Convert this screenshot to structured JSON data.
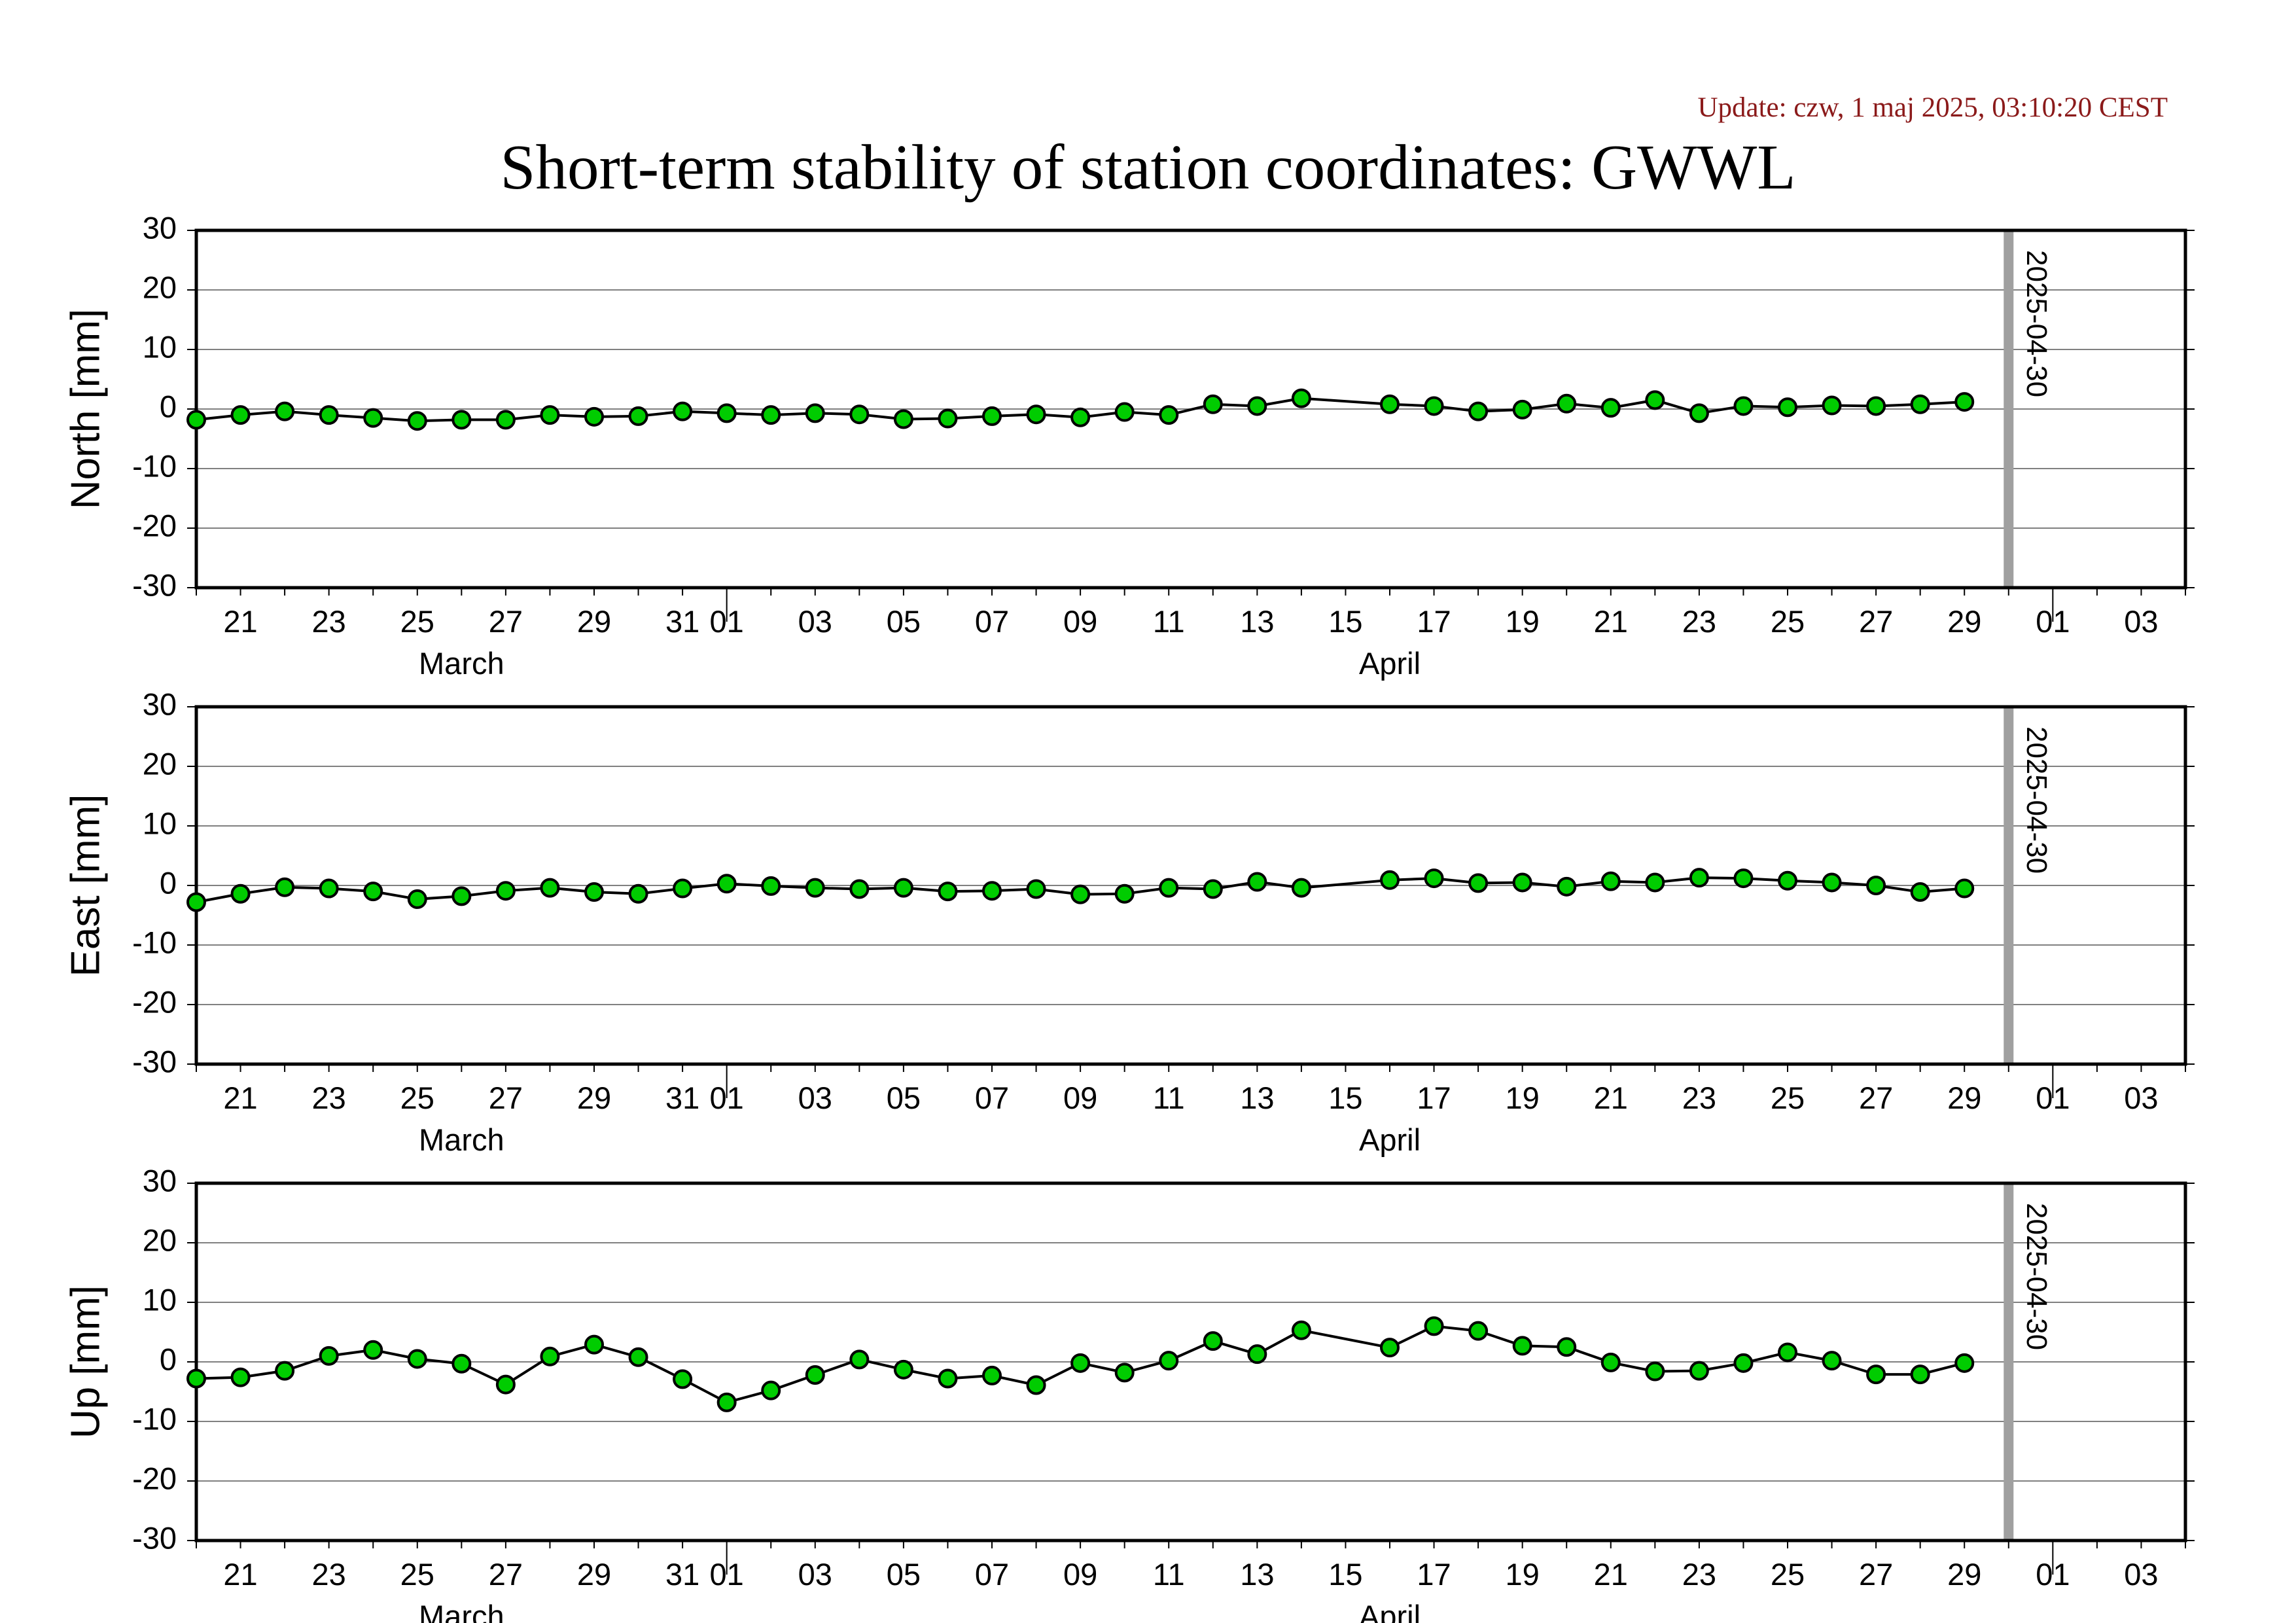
{
  "update_text": "Update: czw, 1 maj 2025, 03:10:20 CEST",
  "title": "Short-term stability of station coordinates: GWWL",
  "colors": {
    "marker_fill": "#00cc00",
    "marker_edge": "#000000",
    "line": "#000000",
    "grid": "#808080",
    "vline": "#a0a0a0",
    "update_text": "#8b1a1a"
  },
  "chart_data": [
    {
      "type": "line",
      "ylabel": "North [mm]",
      "ylim": [
        -30,
        30
      ],
      "yticks": [
        30,
        20,
        10,
        0,
        -10,
        -20,
        -30
      ],
      "xlim": [
        "2025-03-20",
        "2025-05-04"
      ],
      "x_day_ticks": [
        "21",
        "23",
        "25",
        "27",
        "29",
        "31",
        "01",
        "03",
        "05",
        "07",
        "09",
        "11",
        "13",
        "15",
        "17",
        "19",
        "21",
        "23",
        "25",
        "27",
        "29",
        "01",
        "03"
      ],
      "x_month_labels": [
        "March",
        "April"
      ],
      "grid": "horizontal",
      "vline": {
        "x": "2025-04-30",
        "label": "2025-04-30"
      },
      "series": [
        {
          "points": [
            [
              "2025-03-20",
              -1.8
            ],
            [
              "2025-03-21",
              -1.0
            ],
            [
              "2025-03-22",
              -0.4
            ],
            [
              "2025-03-23",
              -1.0
            ],
            [
              "2025-03-24",
              -1.5
            ],
            [
              "2025-03-25",
              -2.0
            ],
            [
              "2025-03-26",
              -1.8
            ],
            [
              "2025-03-27",
              -1.8
            ],
            [
              "2025-03-28",
              -1.0
            ],
            [
              "2025-03-29",
              -1.3
            ],
            [
              "2025-03-30",
              -1.2
            ],
            [
              "2025-03-31",
              -0.4
            ],
            [
              "2025-04-01",
              -0.7
            ],
            [
              "2025-04-02",
              -1.0
            ],
            [
              "2025-04-03",
              -0.7
            ],
            [
              "2025-04-04",
              -0.9
            ],
            [
              "2025-04-05",
              -1.7
            ],
            [
              "2025-04-06",
              -1.6
            ],
            [
              "2025-04-07",
              -1.2
            ],
            [
              "2025-04-08",
              -0.9
            ],
            [
              "2025-04-09",
              -1.4
            ],
            [
              "2025-04-10",
              -0.5
            ],
            [
              "2025-04-11",
              -1.0
            ],
            [
              "2025-04-12",
              0.8
            ],
            [
              "2025-04-13",
              0.5
            ],
            [
              "2025-04-14",
              1.8
            ],
            [
              "2025-04-16",
              0.8
            ],
            [
              "2025-04-17",
              0.5
            ],
            [
              "2025-04-18",
              -0.4
            ],
            [
              "2025-04-19",
              -0.1
            ],
            [
              "2025-04-20",
              0.9
            ],
            [
              "2025-04-21",
              0.2
            ],
            [
              "2025-04-22",
              1.5
            ],
            [
              "2025-04-23",
              -0.7
            ],
            [
              "2025-04-24",
              0.5
            ],
            [
              "2025-04-25",
              0.3
            ],
            [
              "2025-04-26",
              0.6
            ],
            [
              "2025-04-27",
              0.5
            ],
            [
              "2025-04-28",
              0.8
            ],
            [
              "2025-04-29",
              1.2
            ]
          ]
        }
      ]
    },
    {
      "type": "line",
      "ylabel": "East [mm]",
      "ylim": [
        -30,
        30
      ],
      "yticks": [
        30,
        20,
        10,
        0,
        -10,
        -20,
        -30
      ],
      "xlim": [
        "2025-03-20",
        "2025-05-04"
      ],
      "x_day_ticks": [
        "21",
        "23",
        "25",
        "27",
        "29",
        "31",
        "01",
        "03",
        "05",
        "07",
        "09",
        "11",
        "13",
        "15",
        "17",
        "19",
        "21",
        "23",
        "25",
        "27",
        "29",
        "01",
        "03"
      ],
      "x_month_labels": [
        "March",
        "April"
      ],
      "grid": "horizontal",
      "vline": {
        "x": "2025-04-30",
        "label": "2025-04-30"
      },
      "series": [
        {
          "points": [
            [
              "2025-03-20",
              -2.8
            ],
            [
              "2025-03-21",
              -1.4
            ],
            [
              "2025-03-22",
              -0.3
            ],
            [
              "2025-03-23",
              -0.5
            ],
            [
              "2025-03-24",
              -1.0
            ],
            [
              "2025-03-25",
              -2.3
            ],
            [
              "2025-03-26",
              -1.8
            ],
            [
              "2025-03-27",
              -0.9
            ],
            [
              "2025-03-28",
              -0.4
            ],
            [
              "2025-03-29",
              -1.1
            ],
            [
              "2025-03-30",
              -1.4
            ],
            [
              "2025-03-31",
              -0.5
            ],
            [
              "2025-04-01",
              0.3
            ],
            [
              "2025-04-02",
              -0.1
            ],
            [
              "2025-04-03",
              -0.4
            ],
            [
              "2025-04-04",
              -0.6
            ],
            [
              "2025-04-05",
              -0.4
            ],
            [
              "2025-04-06",
              -1.0
            ],
            [
              "2025-04-07",
              -0.9
            ],
            [
              "2025-04-08",
              -0.6
            ],
            [
              "2025-04-09",
              -1.5
            ],
            [
              "2025-04-10",
              -1.4
            ],
            [
              "2025-04-11",
              -0.4
            ],
            [
              "2025-04-12",
              -0.6
            ],
            [
              "2025-04-13",
              0.6
            ],
            [
              "2025-04-14",
              -0.4
            ],
            [
              "2025-04-16",
              0.9
            ],
            [
              "2025-04-17",
              1.2
            ],
            [
              "2025-04-18",
              0.4
            ],
            [
              "2025-04-19",
              0.5
            ],
            [
              "2025-04-20",
              -0.2
            ],
            [
              "2025-04-21",
              0.7
            ],
            [
              "2025-04-22",
              0.5
            ],
            [
              "2025-04-23",
              1.3
            ],
            [
              "2025-04-24",
              1.2
            ],
            [
              "2025-04-25",
              0.8
            ],
            [
              "2025-04-26",
              0.5
            ],
            [
              "2025-04-27",
              0.0
            ],
            [
              "2025-04-28",
              -1.1
            ],
            [
              "2025-04-29",
              -0.5
            ]
          ]
        }
      ]
    },
    {
      "type": "line",
      "ylabel": "Up [mm]",
      "ylim": [
        -30,
        30
      ],
      "yticks": [
        30,
        20,
        10,
        0,
        -10,
        -20,
        -30
      ],
      "xlim": [
        "2025-03-20",
        "2025-05-04"
      ],
      "x_day_ticks": [
        "21",
        "23",
        "25",
        "27",
        "29",
        "31",
        "01",
        "03",
        "05",
        "07",
        "09",
        "11",
        "13",
        "15",
        "17",
        "19",
        "21",
        "23",
        "25",
        "27",
        "29",
        "01",
        "03"
      ],
      "x_month_labels": [
        "March",
        "April"
      ],
      "grid": "horizontal",
      "vline": {
        "x": "2025-04-30",
        "label": "2025-04-30"
      },
      "series": [
        {
          "points": [
            [
              "2025-03-20",
              -2.8
            ],
            [
              "2025-03-21",
              -2.6
            ],
            [
              "2025-03-22",
              -1.5
            ],
            [
              "2025-03-23",
              1.0
            ],
            [
              "2025-03-24",
              2.0
            ],
            [
              "2025-03-25",
              0.5
            ],
            [
              "2025-03-26",
              -0.3
            ],
            [
              "2025-03-27",
              -3.8
            ],
            [
              "2025-03-28",
              0.9
            ],
            [
              "2025-03-29",
              2.9
            ],
            [
              "2025-03-30",
              0.8
            ],
            [
              "2025-03-31",
              -2.9
            ],
            [
              "2025-04-01",
              -6.8
            ],
            [
              "2025-04-02",
              -4.8
            ],
            [
              "2025-04-03",
              -2.2
            ],
            [
              "2025-04-04",
              0.4
            ],
            [
              "2025-04-05",
              -1.3
            ],
            [
              "2025-04-06",
              -2.8
            ],
            [
              "2025-04-07",
              -2.3
            ],
            [
              "2025-04-08",
              -3.9
            ],
            [
              "2025-04-09",
              -0.2
            ],
            [
              "2025-04-10",
              -1.8
            ],
            [
              "2025-04-11",
              0.2
            ],
            [
              "2025-04-12",
              3.5
            ],
            [
              "2025-04-13",
              1.3
            ],
            [
              "2025-04-14",
              5.3
            ],
            [
              "2025-04-16",
              2.4
            ],
            [
              "2025-04-17",
              6.0
            ],
            [
              "2025-04-18",
              5.2
            ],
            [
              "2025-04-19",
              2.7
            ],
            [
              "2025-04-20",
              2.5
            ],
            [
              "2025-04-21",
              -0.1
            ],
            [
              "2025-04-22",
              -1.6
            ],
            [
              "2025-04-23",
              -1.5
            ],
            [
              "2025-04-24",
              -0.2
            ],
            [
              "2025-04-25",
              1.6
            ],
            [
              "2025-04-26",
              0.2
            ],
            [
              "2025-04-27",
              -2.1
            ],
            [
              "2025-04-28",
              -2.1
            ],
            [
              "2025-04-29",
              -0.2
            ]
          ]
        }
      ]
    }
  ]
}
